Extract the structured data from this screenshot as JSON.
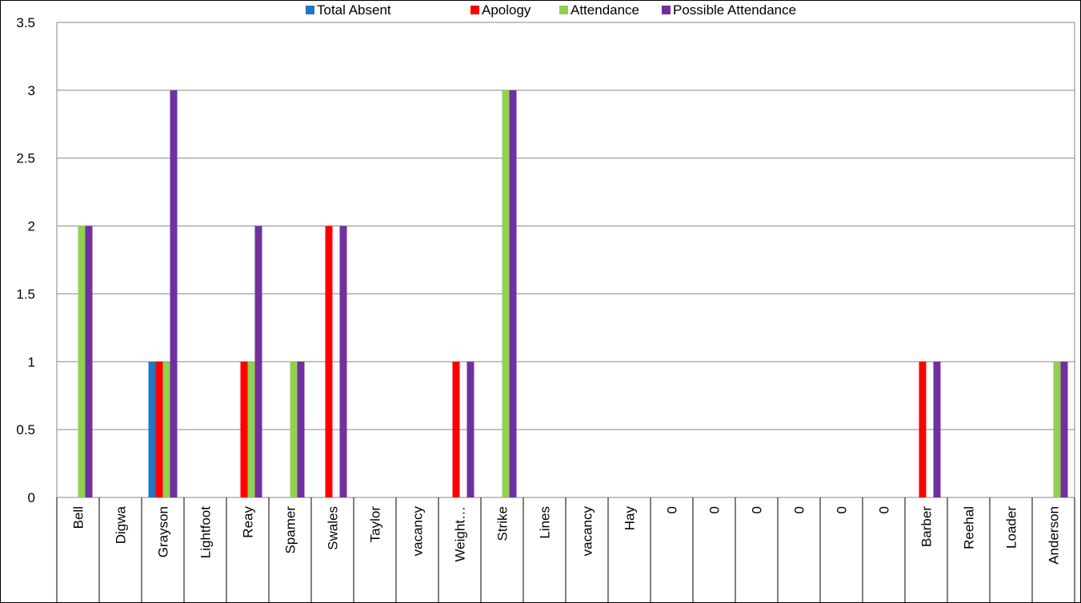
{
  "chart_data": {
    "type": "bar",
    "categories": [
      "Bell",
      "Digwa",
      "Grayson",
      "Lightfoot",
      "Reay",
      "Spamer",
      "Swales",
      "Taylor",
      "vacancy",
      "Weight…",
      "Strike",
      "Lines",
      "vacancy",
      "Hay",
      "0",
      "0",
      "0",
      "0",
      "0",
      "0",
      "Barber",
      "Reehal",
      "Loader",
      "Anderson"
    ],
    "series": [
      {
        "name": "Total Absent",
        "color": "#1f77c4",
        "values": [
          0,
          0,
          1,
          0,
          0,
          0,
          0,
          0,
          0,
          0,
          0,
          0,
          0,
          0,
          0,
          0,
          0,
          0,
          0,
          0,
          0,
          0,
          0,
          0
        ]
      },
      {
        "name": "Apology",
        "color": "#ff0000",
        "values": [
          0,
          0,
          1,
          0,
          1,
          0,
          2,
          0,
          0,
          1,
          0,
          0,
          0,
          0,
          0,
          0,
          0,
          0,
          0,
          0,
          1,
          0,
          0,
          0
        ]
      },
      {
        "name": "Attendance",
        "color": "#92d050",
        "values": [
          2,
          0,
          1,
          0,
          1,
          1,
          0,
          0,
          0,
          0,
          3,
          0,
          0,
          0,
          0,
          0,
          0,
          0,
          0,
          0,
          0,
          0,
          0,
          1
        ]
      },
      {
        "name": "Possible Attendance",
        "color": "#7030a0",
        "values": [
          2,
          0,
          3,
          0,
          2,
          1,
          2,
          0,
          0,
          1,
          3,
          0,
          0,
          0,
          0,
          0,
          0,
          0,
          0,
          0,
          1,
          0,
          0,
          1
        ]
      }
    ],
    "yticks": [
      "0",
      "0.5",
      "1",
      "1.5",
      "2",
      "2.5",
      "3",
      "3.5"
    ],
    "ylim": [
      0,
      3.5
    ],
    "grid": true,
    "legend_position": "top"
  }
}
